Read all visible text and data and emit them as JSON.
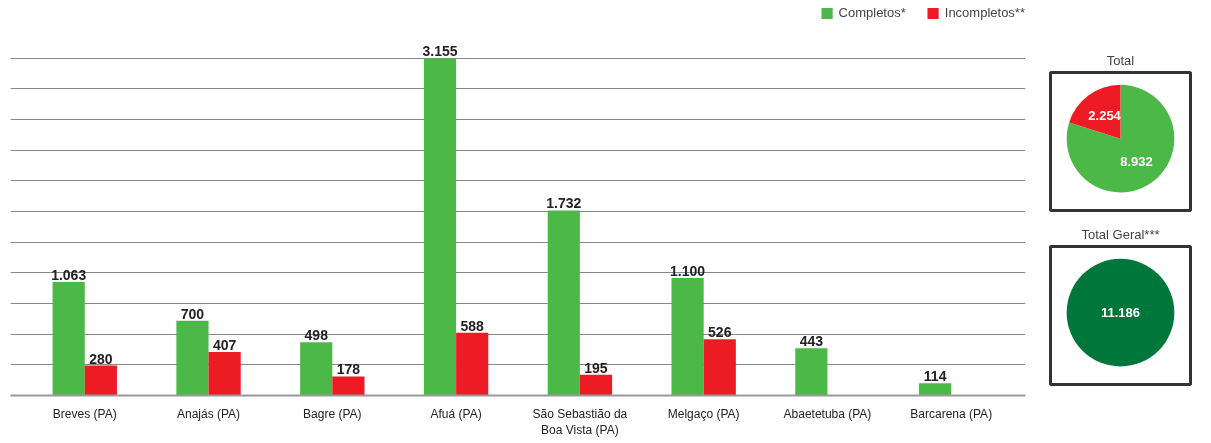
{
  "chart_data": [
    {
      "type": "bar",
      "categories": [
        "Breves (PA)",
        "Anajás (PA)",
        "Bagre (PA)",
        "Afuá (PA)",
        "São Sebastião da\nBoa Vista (PA)",
        "Melgaço (PA)",
        "Abaetetuba (PA)",
        "Barcarena (PA)"
      ],
      "series": [
        {
          "name": "Completos*",
          "color": "#4cb848",
          "values": [
            1063,
            700,
            498,
            3155,
            1732,
            1100,
            443,
            114
          ],
          "value_labels": [
            "1.063",
            "700",
            "498",
            "3.155",
            "1.732",
            "1.100",
            "443",
            "114"
          ]
        },
        {
          "name": "Incompletos**",
          "color": "#ed1c24",
          "values": [
            280,
            407,
            178,
            588,
            195,
            526,
            null,
            null
          ],
          "value_labels": [
            "280",
            "407",
            "178",
            "588",
            "195",
            "526",
            null,
            null
          ]
        }
      ],
      "ylim": [
        0,
        3650
      ],
      "yticks": [
        {
          "value": 0,
          "label": null
        },
        {
          "value": 287,
          "label": null
        },
        {
          "value": 574,
          "label": null
        },
        {
          "value": 861,
          "label": null
        },
        {
          "value": 1148,
          "label": null
        },
        {
          "value": 1435,
          "label": null
        },
        {
          "value": 1722,
          "label": null
        },
        {
          "value": 2009,
          "label": null
        },
        {
          "value": 2296,
          "label": null
        },
        {
          "value": 2583,
          "label": null
        },
        {
          "value": 2870,
          "label": null
        },
        {
          "value": 3157,
          "label": null
        }
      ],
      "grid": "y",
      "legend": "top right",
      "tick_labels": "x"
    },
    {
      "type": "pie",
      "title": "Total",
      "categories": [
        null,
        null
      ],
      "values": [
        8932,
        2254
      ],
      "colors": [
        "#4cb848",
        "#ed1c24"
      ],
      "value_labels": [
        "8.932",
        "2.254"
      ]
    },
    {
      "type": "pie",
      "title": "Total Geral***",
      "categories": [
        null
      ],
      "values": [
        11186
      ],
      "colors": [
        "#00773a"
      ],
      "value_labels": [
        "11.186"
      ]
    }
  ]
}
